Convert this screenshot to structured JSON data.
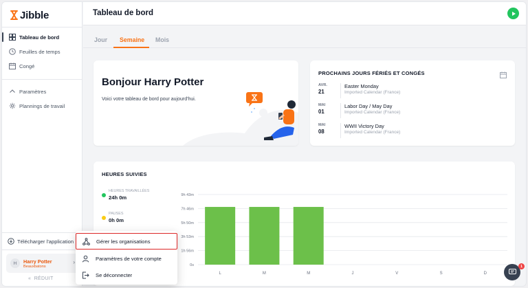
{
  "brand": {
    "name": "Jibble",
    "accent": "#f97316"
  },
  "sidebar": {
    "items": [
      {
        "label": "Tableau de bord",
        "icon": "dashboard-icon",
        "active": true
      },
      {
        "label": "Feuilles de temps",
        "icon": "clock-icon",
        "active": false
      },
      {
        "label": "Congé",
        "icon": "calendar-icon",
        "active": false
      }
    ],
    "items2": [
      {
        "label": "Paramètres",
        "icon": "chevron-up-icon"
      },
      {
        "label": "Plannings de travail",
        "icon": "settings-icon"
      }
    ],
    "download_label": "Télécharger l'application",
    "user": {
      "initial": "H",
      "name": "Harry Potter",
      "role": "Beauxbatons"
    },
    "reduce_label": "RÉDUIT"
  },
  "header": {
    "title": "Tableau de bord"
  },
  "tabs": [
    {
      "label": "Jour",
      "active": false
    },
    {
      "label": "Semaine",
      "active": true
    },
    {
      "label": "Mois",
      "active": false
    }
  ],
  "greeting": {
    "title": "Bonjour Harry Potter",
    "subtitle": "Voici votre tableau de bord pour aujourd'hui."
  },
  "holidays": {
    "title": "PROCHAINS JOURS FÉRIÉS ET CONGÉS",
    "items": [
      {
        "month": "AVR.",
        "day": "21",
        "name": "Easter Monday",
        "source": "Imported Calendar (France)"
      },
      {
        "month": "MAI",
        "day": "01",
        "name": "Labor Day / May Day",
        "source": "Imported Calendar (France)"
      },
      {
        "month": "MAI",
        "day": "08",
        "name": "WWII Victory Day",
        "source": "Imported Calendar (France)"
      }
    ]
  },
  "tracked": {
    "title": "HEURES SUIVIES",
    "legend": [
      {
        "label": "HEURES TRAVAILLÉES",
        "value": "24h 0m",
        "color": "#22c55e"
      },
      {
        "label": "PAUSES",
        "value": "0h 0m",
        "color": "#facc15"
      }
    ]
  },
  "chart_data": {
    "type": "bar",
    "categories": [
      "L",
      "M",
      "M",
      "J",
      "V",
      "S",
      "D"
    ],
    "values": [
      8,
      8,
      8,
      0,
      0,
      0,
      0
    ],
    "y_ticks": [
      "0s",
      "1h 56m",
      "3h 53m",
      "5h 50m",
      "7h 46m",
      "9h 43m"
    ],
    "ylim_hours": [
      0,
      9.72
    ],
    "bar_color": "#6cc04a",
    "grid": true
  },
  "menu": {
    "items": [
      {
        "label": "Gérer les organisations",
        "icon": "organization-icon"
      },
      {
        "label": "Paramètres de votre compte",
        "icon": "user-icon"
      },
      {
        "label": "Se déconnecter",
        "icon": "logout-icon"
      }
    ]
  },
  "chat": {
    "badge": "1"
  }
}
